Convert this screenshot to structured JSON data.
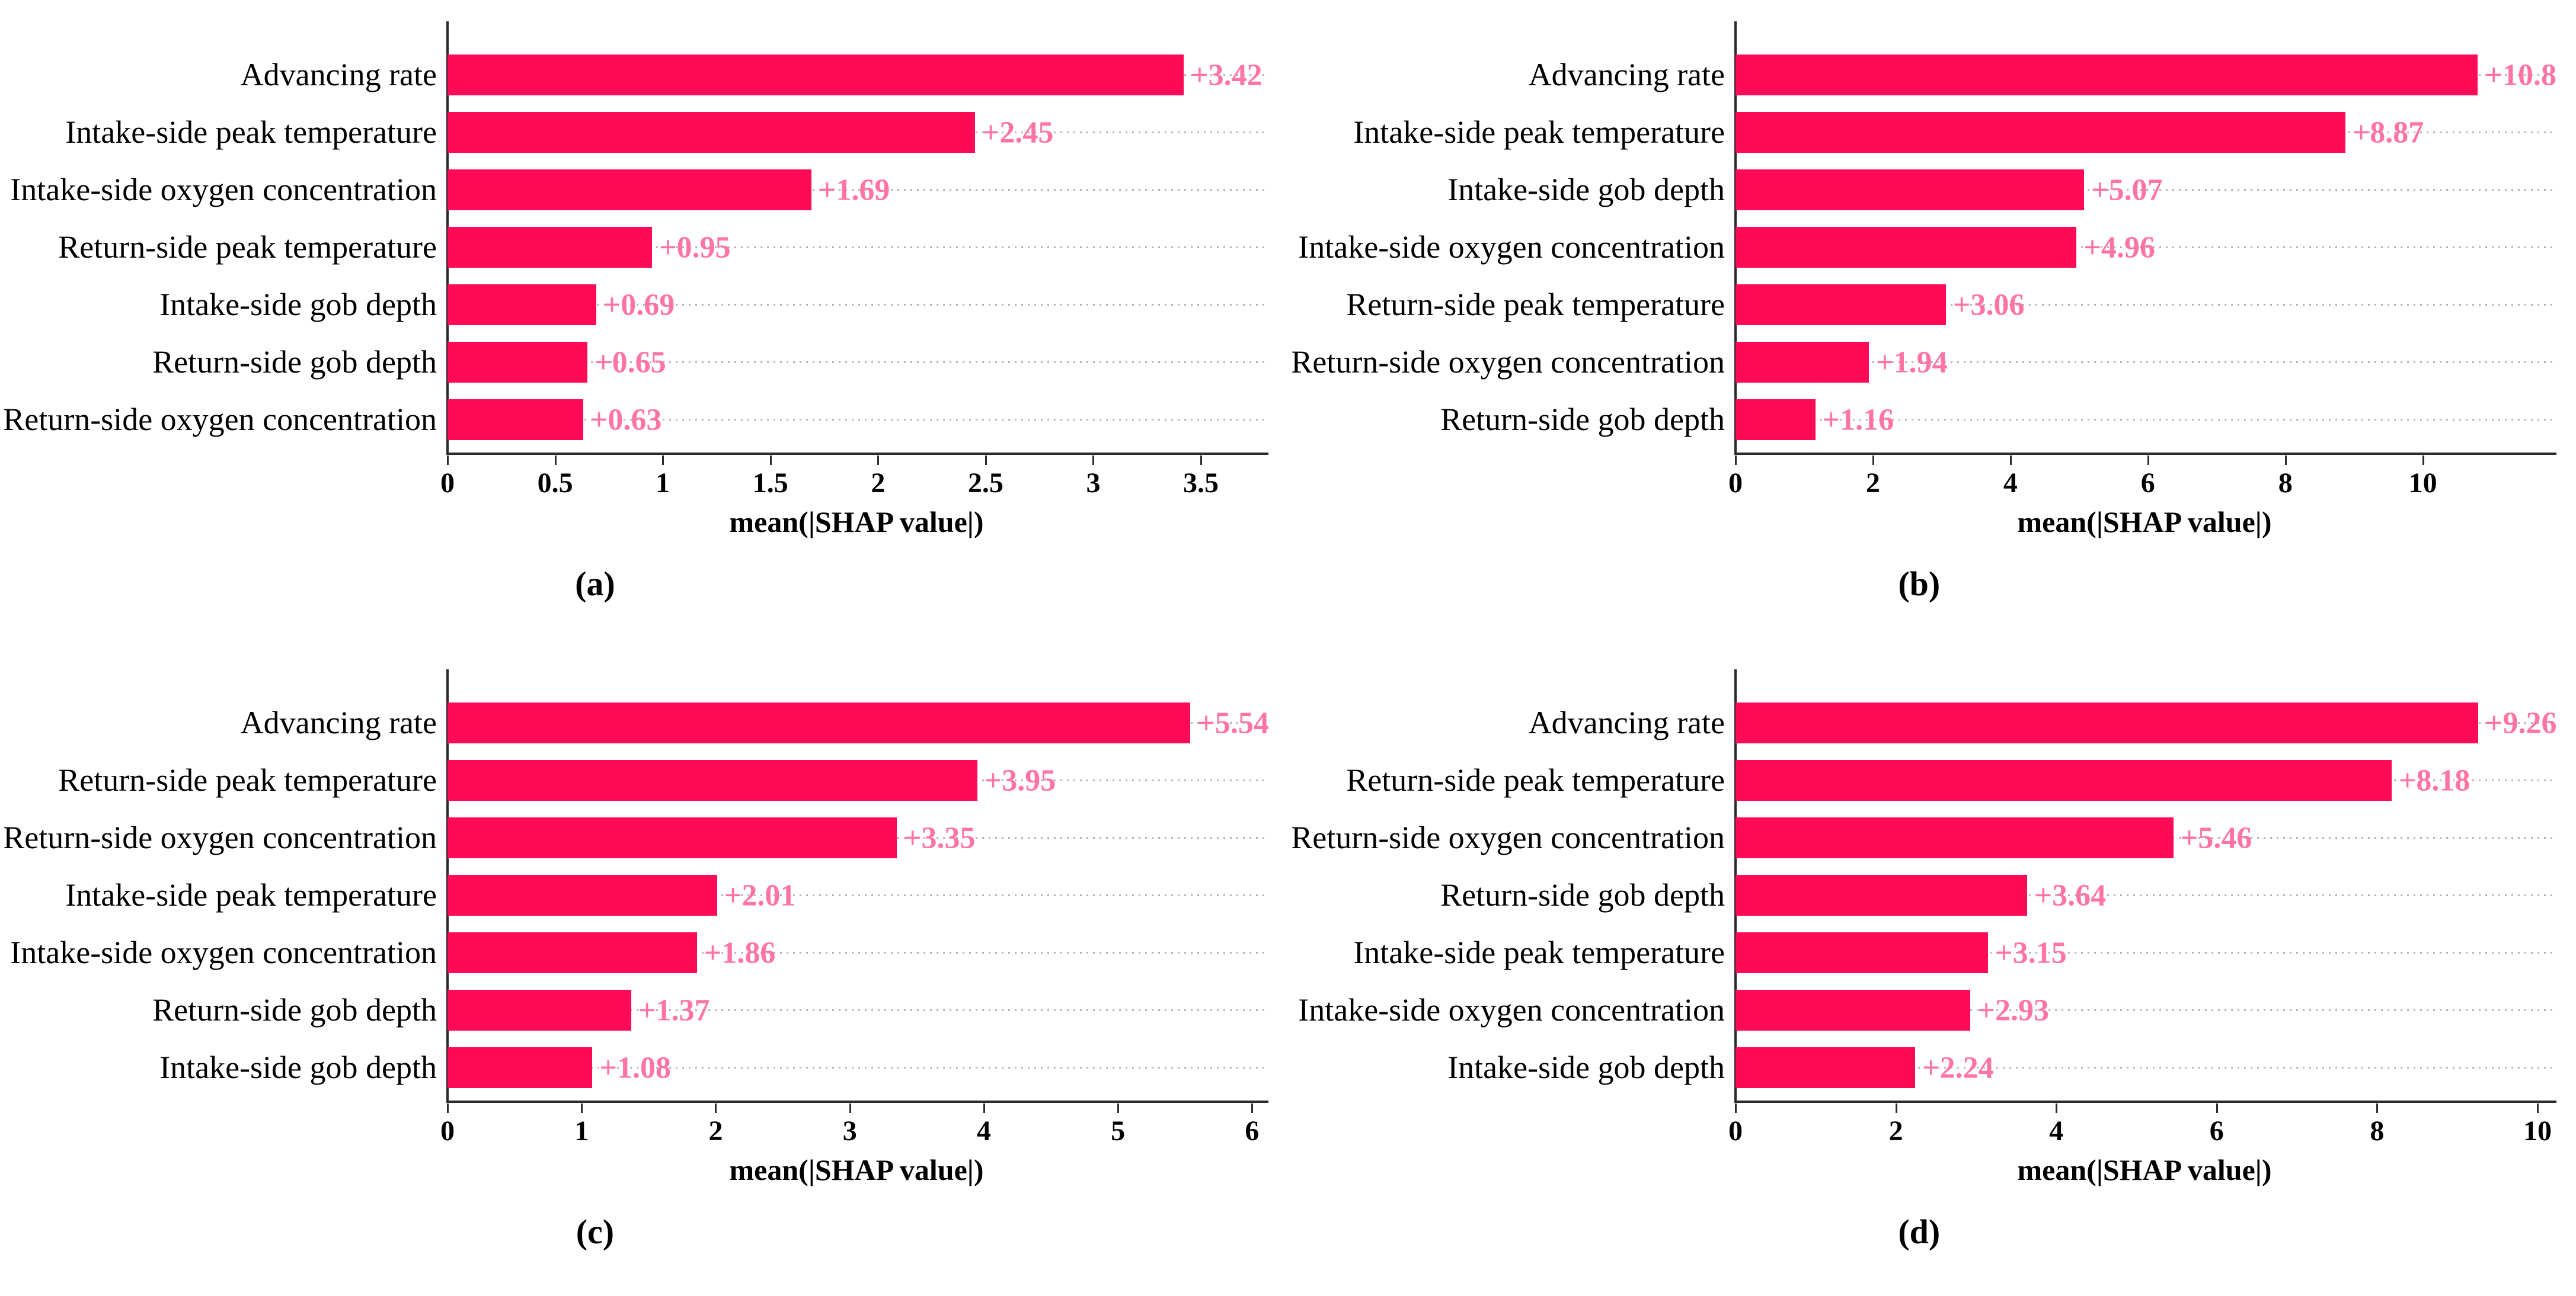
{
  "figure": {
    "bar_color": "#ff0a56",
    "value_label_color": "#ff74a3",
    "grid_color": "#b3b3b3",
    "axis_color": "#2b2b2b",
    "background": "#ffffff"
  },
  "chart_data": [
    {
      "type": "bar",
      "orientation": "horizontal",
      "panel": "a",
      "caption": "(a)",
      "xlabel": "mean(|SHAP value|)",
      "categories": [
        "Advancing rate",
        "Intake-side peak temperature",
        "Intake-side oxygen concentration",
        "Return-side peak temperature",
        "Intake-side gob depth",
        "Return-side gob depth",
        "Return-side oxygen concentration"
      ],
      "values": [
        3.42,
        2.45,
        1.69,
        0.95,
        0.69,
        0.65,
        0.63
      ],
      "value_labels": [
        "+3.42",
        "+2.45",
        "+1.69",
        "+0.95",
        "+0.69",
        "+0.65",
        "+0.63"
      ],
      "xlim": [
        0,
        3.8
      ],
      "xticks": [
        0,
        0.5,
        1,
        1.5,
        2,
        2.5,
        3,
        3.5
      ],
      "xtick_labels": [
        "0",
        "0.5",
        "1",
        "1.5",
        "2",
        "2.5",
        "3",
        "3.5"
      ],
      "grid": "dotted-horizontal",
      "legend": "none"
    },
    {
      "type": "bar",
      "orientation": "horizontal",
      "panel": "b",
      "caption": "(b)",
      "xlabel": "mean(|SHAP value|)",
      "categories": [
        "Advancing rate",
        "Intake-side peak temperature",
        "Intake-side gob depth",
        "Intake-side oxygen concentration",
        "Return-side peak temperature",
        "Return-side oxygen concentration",
        "Return-side gob depth"
      ],
      "values": [
        10.8,
        8.87,
        5.07,
        4.96,
        3.06,
        1.94,
        1.16
      ],
      "value_labels": [
        "+10.8",
        "+8.87",
        "+5.07",
        "+4.96",
        "+3.06",
        "+1.94",
        "+1.16"
      ],
      "xlim": [
        0,
        11.9
      ],
      "xticks": [
        0,
        2,
        4,
        6,
        8,
        10
      ],
      "xtick_labels": [
        "0",
        "2",
        "4",
        "6",
        "8",
        "10"
      ],
      "grid": "dotted-horizontal",
      "legend": "none"
    },
    {
      "type": "bar",
      "orientation": "horizontal",
      "panel": "c",
      "caption": "(c)",
      "xlabel": "mean(|SHAP value|)",
      "categories": [
        "Advancing rate",
        "Return-side peak temperature",
        "Return-side oxygen concentration",
        "Intake-side peak temperature",
        "Intake-side oxygen concentration",
        "Return-side gob depth",
        "Intake-side gob depth"
      ],
      "values": [
        5.54,
        3.95,
        3.35,
        2.01,
        1.86,
        1.37,
        1.08
      ],
      "value_labels": [
        "+5.54",
        "+3.95",
        "+3.35",
        "+2.01",
        "+1.86",
        "+1.37",
        "+1.08"
      ],
      "xlim": [
        0,
        6.1
      ],
      "xticks": [
        0,
        1,
        2,
        3,
        4,
        5,
        6
      ],
      "xtick_labels": [
        "0",
        "1",
        "2",
        "3",
        "4",
        "5",
        "6"
      ],
      "grid": "dotted-horizontal",
      "legend": "none"
    },
    {
      "type": "bar",
      "orientation": "horizontal",
      "panel": "d",
      "caption": "(d)",
      "xlabel": "mean(|SHAP value|)",
      "categories": [
        "Advancing rate",
        "Return-side peak temperature",
        "Return-side oxygen concentration",
        "Return-side gob depth",
        "Intake-side peak temperature",
        "Intake-side oxygen concentration",
        "Intake-side gob depth"
      ],
      "values": [
        9.26,
        8.18,
        5.46,
        3.64,
        3.15,
        2.93,
        2.24
      ],
      "value_labels": [
        "+9.26",
        "+8.18",
        "+5.46",
        "+3.64",
        "+3.15",
        "+2.93",
        "+2.24"
      ],
      "xlim": [
        0,
        10.2
      ],
      "xticks": [
        0,
        2,
        4,
        6,
        8,
        10
      ],
      "xtick_labels": [
        "0",
        "2",
        "4",
        "6",
        "8",
        "10"
      ],
      "grid": "dotted-horizontal",
      "legend": "none"
    }
  ]
}
